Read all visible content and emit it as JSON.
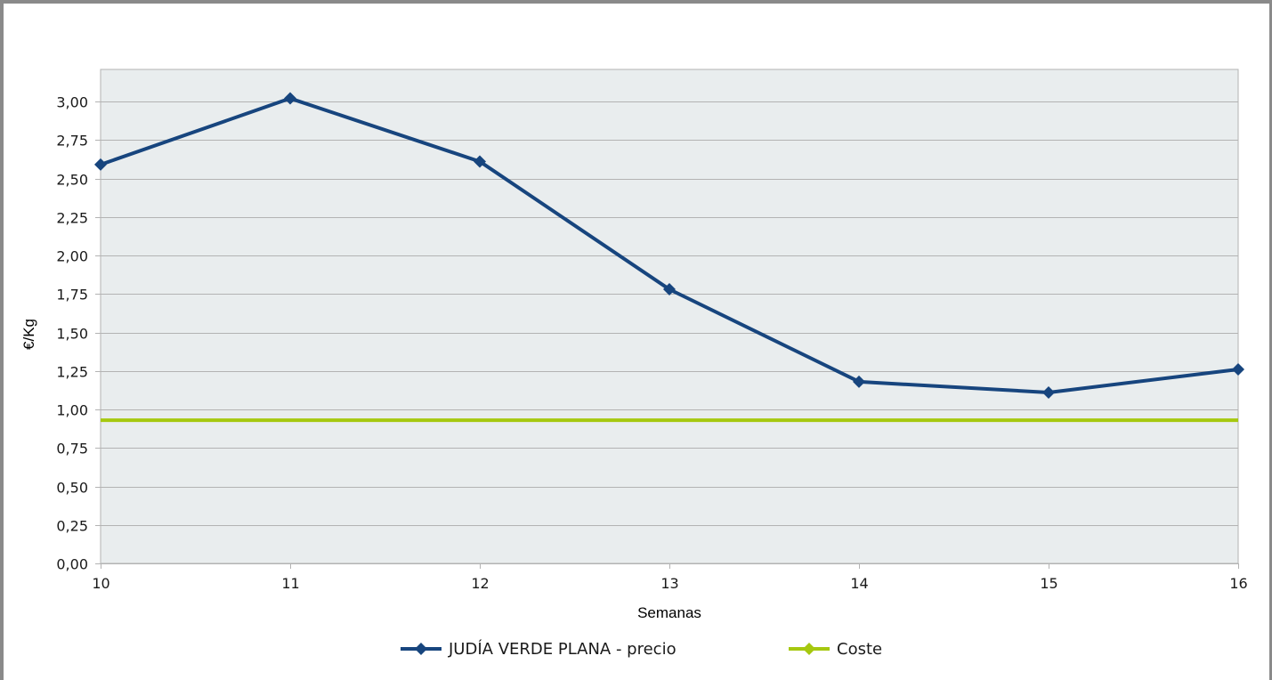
{
  "chart_data": {
    "type": "line",
    "title": "",
    "xlabel": "Semanas",
    "ylabel": "€/Kg",
    "x": [
      10,
      11,
      12,
      13,
      14,
      15,
      16
    ],
    "x_tick_labels": [
      "10",
      "11",
      "12",
      "13",
      "14",
      "15",
      "16"
    ],
    "ylim": [
      0,
      3.0
    ],
    "y_tick_values": [
      0,
      0.25,
      0.5,
      0.75,
      1.0,
      1.25,
      1.5,
      1.75,
      2.0,
      2.25,
      2.5,
      2.75,
      3.0
    ],
    "y_tick_labels": [
      "0,00",
      "0,25",
      "0,50",
      "0,75",
      "1,00",
      "1,25",
      "1,50",
      "1,75",
      "2,00",
      "2,25",
      "2,50",
      "2,75",
      "3,00"
    ],
    "grid": "horizontal",
    "legend_position": "bottom",
    "series": [
      {
        "name": "JUDÍA VERDE PLANA - precio",
        "values": [
          2.59,
          3.02,
          2.61,
          1.78,
          1.18,
          1.11,
          1.26
        ],
        "color": "#17457e",
        "marker": "diamond"
      },
      {
        "name": "Coste",
        "values": [
          0.93,
          0.93,
          0.93,
          0.93,
          0.93,
          0.93,
          0.93
        ],
        "color": "#a6c80f",
        "marker": "diamond"
      }
    ],
    "colors": {
      "plot_background": "#e9edee",
      "grid": "#b3b3b3"
    }
  }
}
